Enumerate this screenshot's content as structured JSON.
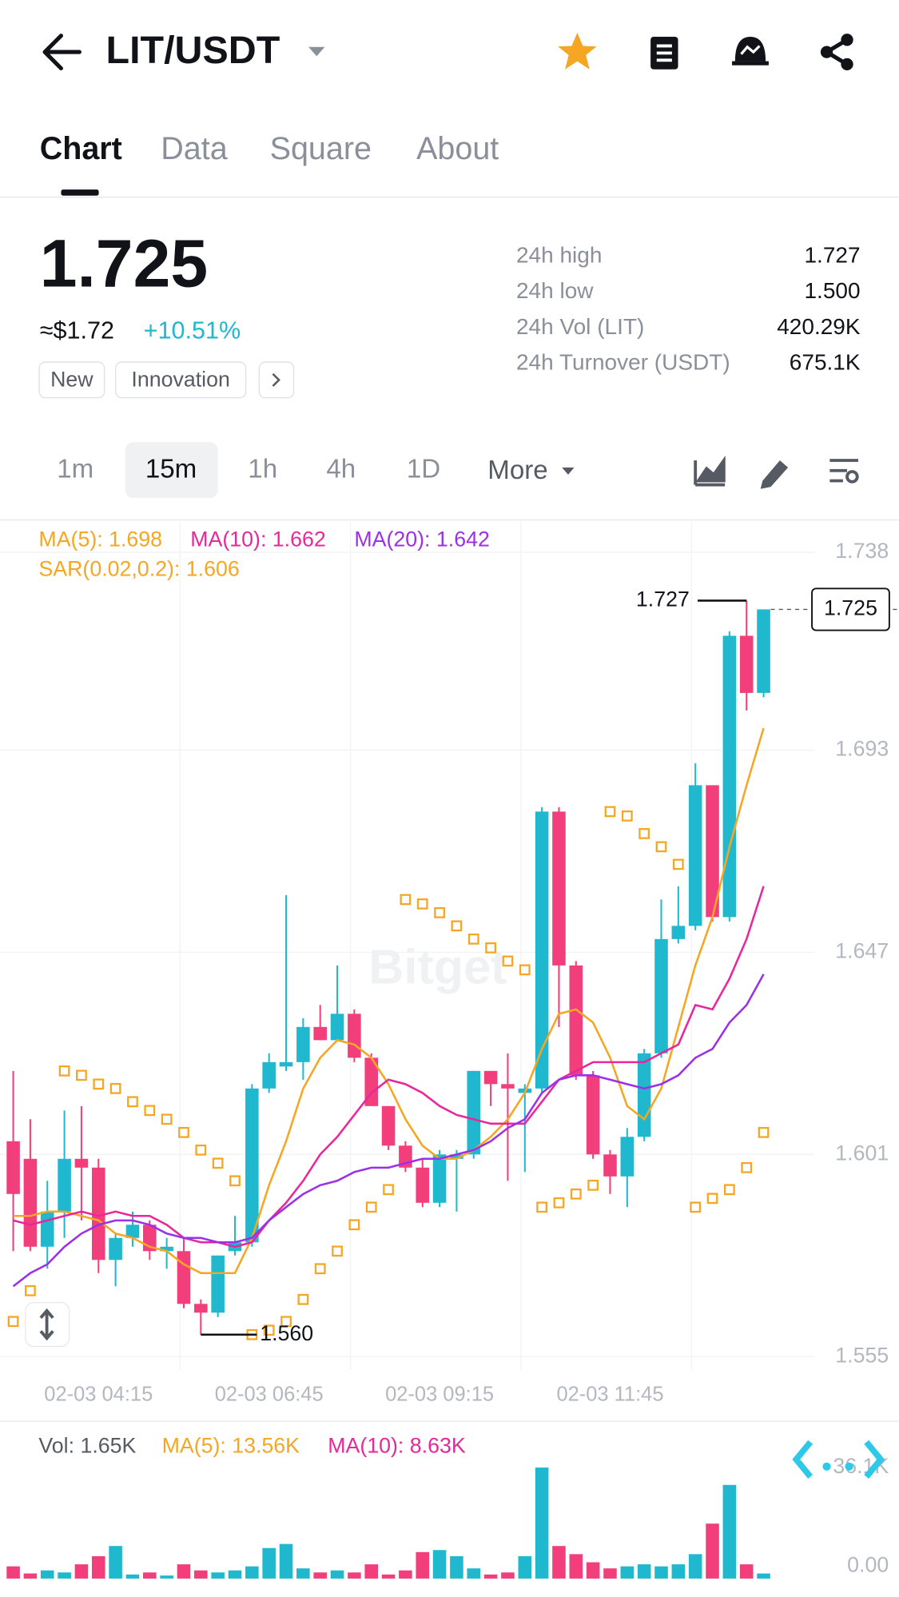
{
  "header": {
    "title": "LIT/USDT"
  },
  "tabs": [
    "Chart",
    "Data",
    "Square",
    "About"
  ],
  "ticker": {
    "price": "1.725",
    "usd": "≈$1.72",
    "change": "+10.51%",
    "tags": [
      "New",
      "Innovation"
    ]
  },
  "stats": [
    {
      "label": "24h high",
      "value": "1.727"
    },
    {
      "label": "24h low",
      "value": "1.500"
    },
    {
      "label": "24h Vol (LIT)",
      "value": "420.29K"
    },
    {
      "label": "24h Turnover (USDT)",
      "value": "675.1K"
    }
  ],
  "intervals": [
    "1m",
    "15m",
    "1h",
    "4h",
    "1D",
    "More"
  ],
  "chart_data": [
    {
      "type": "candlestick",
      "watermark": "Bitget",
      "categories": [
        null,
        null,
        null,
        null,
        null,
        "02-03 04:15",
        null,
        null,
        null,
        null,
        null,
        null,
        null,
        null,
        null,
        "02-03 06:45",
        null,
        null,
        null,
        null,
        null,
        null,
        null,
        null,
        null,
        "02-03 09:15",
        null,
        null,
        null,
        null,
        null,
        null,
        null,
        null,
        null,
        "02-03 11:45",
        null,
        null,
        null,
        null,
        null,
        null,
        null,
        null,
        null
      ],
      "open": [
        1.604,
        1.6,
        1.58,
        1.588,
        1.6,
        1.598,
        1.577,
        1.582,
        1.585,
        1.579,
        1.579,
        1.567,
        1.565,
        1.579,
        1.581,
        1.616,
        1.621,
        1.622,
        1.63,
        1.627,
        1.633,
        1.623,
        1.612,
        1.603,
        1.598,
        1.59,
        1.6,
        1.601,
        1.62,
        1.617,
        1.615,
        1.616,
        1.679,
        1.644,
        1.619,
        1.601,
        1.596,
        1.605,
        1.624,
        1.65,
        1.653,
        1.685,
        1.655,
        1.719,
        1.706
      ],
      "high": [
        1.62,
        1.609,
        1.595,
        1.611,
        1.612,
        1.6,
        1.583,
        1.588,
        1.586,
        1.582,
        1.582,
        1.568,
        1.578,
        1.587,
        1.617,
        1.624,
        1.66,
        1.632,
        1.635,
        1.644,
        1.634,
        1.624,
        1.612,
        1.604,
        1.6,
        1.602,
        1.602,
        1.62,
        1.62,
        1.624,
        1.617,
        1.68,
        1.68,
        1.645,
        1.62,
        1.602,
        1.607,
        1.625,
        1.659,
        1.662,
        1.69,
        1.685,
        1.72,
        1.727,
        1.725
      ],
      "low": [
        1.579,
        1.579,
        1.575,
        1.582,
        1.586,
        1.574,
        1.571,
        1.58,
        1.577,
        1.575,
        1.566,
        1.56,
        1.564,
        1.578,
        1.58,
        1.615,
        1.62,
        1.618,
        1.627,
        1.627,
        1.622,
        1.612,
        1.602,
        1.597,
        1.589,
        1.589,
        1.588,
        1.6,
        1.612,
        1.595,
        1.597,
        1.615,
        1.63,
        1.618,
        1.6,
        1.592,
        1.589,
        1.604,
        1.623,
        1.649,
        1.652,
        1.654,
        1.654,
        1.702,
        1.705
      ],
      "close": [
        1.592,
        1.58,
        1.588,
        1.6,
        1.598,
        1.577,
        1.582,
        1.585,
        1.579,
        1.58,
        1.567,
        1.565,
        1.578,
        1.581,
        1.616,
        1.622,
        1.622,
        1.63,
        1.627,
        1.633,
        1.623,
        1.612,
        1.603,
        1.598,
        1.59,
        1.601,
        1.601,
        1.62,
        1.617,
        1.616,
        1.616,
        1.679,
        1.644,
        1.619,
        1.601,
        1.596,
        1.605,
        1.624,
        1.65,
        1.653,
        1.685,
        1.655,
        1.719,
        1.706,
        1.725
      ],
      "up_color": "#1fb8cf",
      "down_color": "#f23f7c",
      "series": [
        {
          "name": "MA(5)",
          "legend": "MA(5): 1.698",
          "color": "#f5a623",
          "values": [
            1.587,
            1.587,
            1.588,
            1.588,
            1.587,
            1.586,
            1.583,
            1.582,
            1.58,
            1.579,
            1.576,
            1.574,
            1.574,
            1.574,
            1.582,
            1.594,
            1.604,
            1.616,
            1.623,
            1.627,
            1.626,
            1.623,
            1.617,
            1.609,
            1.603,
            1.6,
            1.6,
            1.602,
            1.605,
            1.609,
            1.615,
            1.625,
            1.633,
            1.634,
            1.631,
            1.623,
            1.612,
            1.609,
            1.616,
            1.63,
            1.644,
            1.655,
            1.671,
            1.685,
            1.698
          ]
        },
        {
          "name": "MA(10)",
          "legend": "MA(10): 1.662",
          "color": "#e8289a",
          "values": [
            1.586,
            1.585,
            1.586,
            1.587,
            1.588,
            1.587,
            1.588,
            1.587,
            1.587,
            1.585,
            1.582,
            1.581,
            1.581,
            1.58,
            1.581,
            1.586,
            1.59,
            1.595,
            1.601,
            1.605,
            1.61,
            1.615,
            1.618,
            1.617,
            1.615,
            1.612,
            1.61,
            1.609,
            1.608,
            1.608,
            1.608,
            1.613,
            1.618,
            1.62,
            1.622,
            1.622,
            1.622,
            1.622,
            1.624,
            1.626,
            1.635,
            1.634,
            1.641,
            1.65,
            1.662
          ]
        },
        {
          "name": "MA(20)",
          "legend": "MA(20): 1.642",
          "color": "#9b30e8",
          "values": [
            1.571,
            1.574,
            1.576,
            1.58,
            1.583,
            1.585,
            1.586,
            1.586,
            1.585,
            1.583,
            1.582,
            1.582,
            1.581,
            1.581,
            1.582,
            1.586,
            1.589,
            1.592,
            1.594,
            1.595,
            1.597,
            1.598,
            1.598,
            1.599,
            1.6,
            1.6,
            1.601,
            1.602,
            1.604,
            1.607,
            1.609,
            1.615,
            1.618,
            1.619,
            1.619,
            1.618,
            1.617,
            1.616,
            1.617,
            1.619,
            1.623,
            1.625,
            1.631,
            1.635,
            1.642
          ]
        }
      ],
      "sar": {
        "legend": "SAR(0.02,0.2): 1.606",
        "color": "#f5a623",
        "values": [
          1.563,
          1.57,
          null,
          1.62,
          1.619,
          1.617,
          1.616,
          1.613,
          1.611,
          1.609,
          1.606,
          1.602,
          1.599,
          1.595,
          1.56,
          1.561,
          1.563,
          1.568,
          1.575,
          1.579,
          1.585,
          1.589,
          1.593,
          1.659,
          1.658,
          1.656,
          1.653,
          1.65,
          1.648,
          1.645,
          1.643,
          1.589,
          1.59,
          1.592,
          1.594,
          1.679,
          1.678,
          1.674,
          1.671,
          1.667,
          1.589,
          1.591,
          1.593,
          1.598,
          1.606
        ]
      },
      "high_label": 1.727,
      "low_label": {
        "value": 1.56,
        "label": "1.560"
      },
      "last_price": 1.725,
      "ylim": [
        1.552,
        1.745
      ],
      "yticks": [
        1.738,
        1.693,
        1.647,
        1.601,
        1.555
      ],
      "grid": true
    },
    {
      "type": "bar",
      "legend": [
        {
          "text": "Vol: 1.65K",
          "color": "#555a63"
        },
        {
          "text": "MA(5): 13.56K",
          "color": "#f5a623"
        },
        {
          "text": "MA(10): 8.63K",
          "color": "#e8289a"
        }
      ],
      "values": [
        3970,
        1660,
        2650,
        1990,
        4630,
        7280,
        10590,
        1320,
        1990,
        990,
        4630,
        2650,
        1990,
        2650,
        3970,
        9930,
        11250,
        3310,
        1990,
        2650,
        1990,
        4630,
        1320,
        2650,
        8610,
        9270,
        7280,
        3310,
        1320,
        1990,
        7280,
        36100,
        10590,
        7940,
        5300,
        3310,
        3970,
        4630,
        3970,
        4630,
        7940,
        17870,
        30450,
        4630,
        1650
      ],
      "ylim": [
        0,
        36100
      ],
      "yticks": [
        {
          "value": 0,
          "label": "0.00"
        },
        {
          "value": 36100,
          "label": "36.1K"
        }
      ]
    }
  ]
}
